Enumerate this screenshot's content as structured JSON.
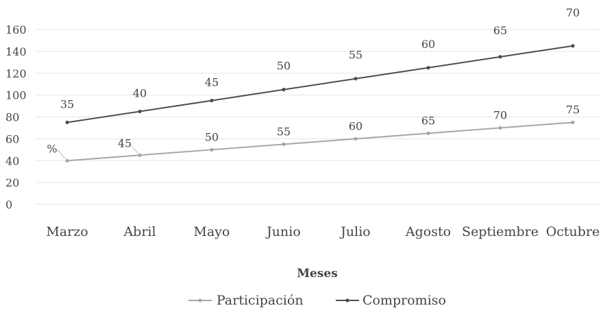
{
  "chart_data": {
    "type": "line",
    "categories": [
      "Marzo",
      "Abril",
      "Mayo",
      "Junio",
      "Julio",
      "Agosto",
      "Septiembre",
      "Octubre"
    ],
    "series": [
      {
        "name": "Participación",
        "values": [
          40,
          45,
          50,
          55,
          60,
          65,
          70,
          75
        ],
        "labels": [
          "%",
          "45",
          "50",
          "55",
          "60",
          "65",
          "70",
          "75"
        ],
        "color": "#a6a6a6"
      },
      {
        "name": "Compromiso",
        "values": [
          75,
          85,
          95,
          105,
          115,
          125,
          135,
          145
        ],
        "labels": [
          "35",
          "40",
          "45",
          "50",
          "55",
          "60",
          "65",
          "70"
        ],
        "color": "#4d4d4d"
      }
    ],
    "xlabel": "Meses",
    "ylabel": "",
    "ylim": [
      0,
      160
    ],
    "yticks": [
      "0",
      "20",
      "40",
      "60",
      "80",
      "100",
      "120",
      "140",
      "160"
    ],
    "grid": true,
    "legend_position": "bottom"
  }
}
